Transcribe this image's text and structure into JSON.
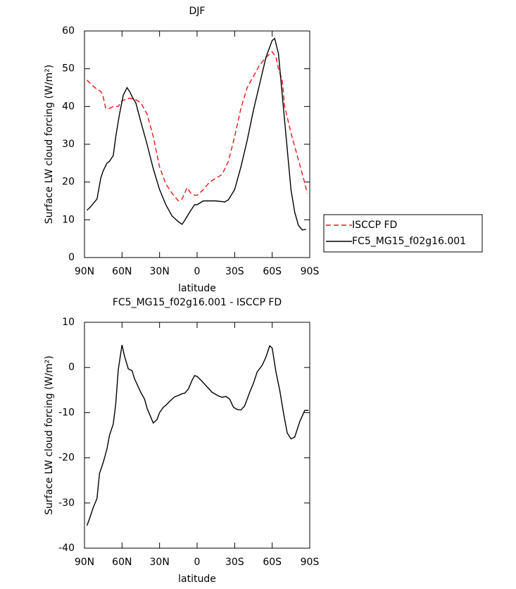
{
  "chart_data": [
    {
      "type": "line",
      "title": "DJF",
      "xlabel": "latitude",
      "ylabel": "Surface LW cloud forcing (W/m²)",
      "xlim": [
        90,
        -90
      ],
      "xticks": [
        {
          "value": 90,
          "label": "90N"
        },
        {
          "value": 60,
          "label": "60N"
        },
        {
          "value": 30,
          "label": "30N"
        },
        0,
        {
          "value": -30,
          "label": "30S"
        },
        {
          "value": -60,
          "label": "60S"
        },
        {
          "value": -90,
          "label": "90S"
        }
      ],
      "ylim": [
        0,
        60
      ],
      "yticks": [
        0,
        10,
        20,
        30,
        40,
        50,
        60
      ],
      "legend": "outside-right",
      "series": [
        {
          "name": "ISCCP FD",
          "color": "#e8141b",
          "dash": true,
          "x": [
            88,
            85,
            80,
            77,
            75,
            73,
            70,
            67,
            63,
            60,
            55,
            50,
            45,
            40,
            35,
            30,
            25,
            20,
            15,
            12,
            8,
            5,
            2,
            0,
            -5,
            -10,
            -15,
            -20,
            -25,
            -30,
            -35,
            -40,
            -45,
            -50,
            -55,
            -60,
            -63,
            -65,
            -68,
            -70,
            -75,
            -80,
            -85,
            -88
          ],
          "values": [
            47,
            46,
            44.5,
            44,
            42.5,
            39.5,
            39.5,
            40,
            40,
            41.5,
            42.2,
            42,
            41,
            38,
            32,
            24,
            19.5,
            17,
            15,
            15.5,
            18.5,
            17,
            16.5,
            16.5,
            18,
            20,
            21,
            22,
            25.5,
            32,
            39.5,
            45,
            48,
            51,
            53,
            54.5,
            53,
            50,
            47,
            40,
            33,
            27,
            21,
            17
          ]
        },
        {
          "name": "FC5_MG15_f02g16.001",
          "color": "#000000",
          "dash": false,
          "x": [
            88,
            85,
            80,
            77,
            75,
            72,
            70,
            67,
            65,
            62,
            59,
            56,
            54,
            51,
            49,
            45,
            40,
            35,
            30,
            25,
            20,
            15,
            12,
            10,
            5,
            2,
            0,
            -5,
            -10,
            -15,
            -20,
            -22,
            -25,
            -30,
            -35,
            -40,
            -45,
            -50,
            -55,
            -60,
            -62,
            -65,
            -70,
            -75,
            -78,
            -81,
            -84,
            -87
          ],
          "values": [
            12.5,
            13.5,
            15.5,
            21,
            23,
            25,
            25.5,
            27,
            32,
            38,
            43,
            45,
            44,
            42,
            41,
            36,
            30,
            23.5,
            18,
            14,
            11,
            9.5,
            8.8,
            9.8,
            12.5,
            14,
            14,
            15,
            15,
            15,
            14.8,
            14.7,
            15.3,
            18,
            24,
            31,
            39,
            46,
            53,
            57.5,
            58,
            54,
            36,
            18,
            12,
            8.5,
            7.3,
            7.5
          ]
        }
      ]
    },
    {
      "type": "line",
      "title": "FC5_MG15_f02g16.001 - ISCCP FD",
      "xlabel": "latitude",
      "ylabel": "Surface LW cloud forcing (W/m²)",
      "xlim": [
        90,
        -90
      ],
      "xticks": [
        {
          "value": 90,
          "label": "90N"
        },
        {
          "value": 60,
          "label": "60N"
        },
        {
          "value": 30,
          "label": "30N"
        },
        0,
        {
          "value": -30,
          "label": "30S"
        },
        {
          "value": -60,
          "label": "60S"
        },
        {
          "value": -90,
          "label": "90S"
        }
      ],
      "ylim": [
        -40,
        10
      ],
      "yticks": [
        -40,
        -30,
        -20,
        -10,
        0,
        10
      ],
      "color": "#000000",
      "x": [
        88,
        86,
        83,
        80,
        78,
        75,
        72,
        70,
        67,
        65,
        63,
        60,
        58,
        55,
        52,
        50,
        45,
        42,
        40,
        37,
        35,
        32,
        30,
        27,
        25,
        22,
        18,
        15,
        12,
        10,
        7,
        4,
        2,
        0,
        -3,
        -7,
        -12,
        -17,
        -20,
        -23,
        -26,
        -29,
        -32,
        -35,
        -38,
        -42,
        -45,
        -48,
        -52,
        -55,
        -58,
        -60,
        -63,
        -66,
        -69,
        -72,
        -75,
        -78,
        -82,
        -86,
        -89
      ],
      "values": [
        -35,
        -33.5,
        -31,
        -29,
        -23.5,
        -21,
        -18,
        -15,
        -12.5,
        -8,
        -0.5,
        5,
        2.5,
        -0.3,
        -0.7,
        -2.5,
        -5.5,
        -7,
        -9,
        -11,
        -12.3,
        -11.5,
        -10,
        -8.8,
        -8.4,
        -7.5,
        -6.5,
        -6.2,
        -5.8,
        -5.7,
        -4.8,
        -2.8,
        -1.8,
        -2,
        -2.8,
        -4,
        -5.5,
        -6.3,
        -6.6,
        -6.4,
        -7,
        -8.8,
        -9.3,
        -9.4,
        -8.5,
        -5.5,
        -3.5,
        -1,
        0.5,
        2.3,
        4.8,
        4.3,
        -1,
        -5,
        -10,
        -14.5,
        -15.8,
        -15.4,
        -12,
        -9.5,
        -9.5
      ]
    }
  ]
}
